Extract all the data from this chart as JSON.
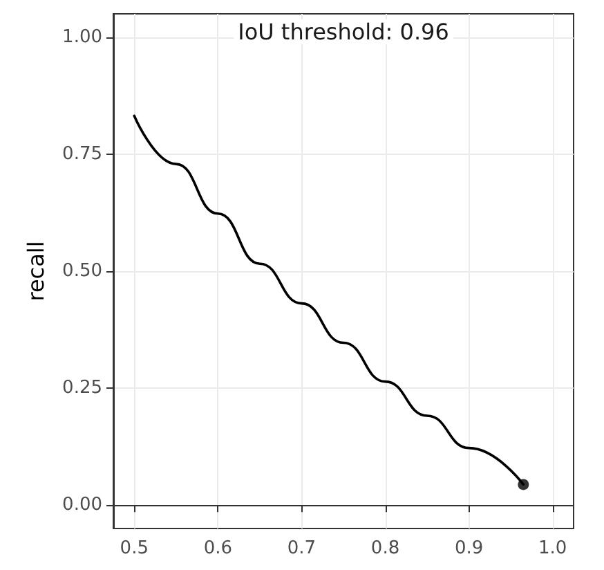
{
  "chart_data": {
    "type": "line",
    "ylabel": "recall",
    "annotations": [
      "IoU threshold: 0.96"
    ],
    "x": [
      0.5,
      0.55,
      0.6,
      0.65,
      0.7,
      0.75,
      0.8,
      0.85,
      0.9,
      0.965
    ],
    "series": [
      {
        "color": "#000000",
        "marker": "none",
        "values": [
          0.832,
          0.729,
          0.623,
          0.516,
          0.431,
          0.347,
          0.264,
          0.191,
          0.122,
          0.044
        ]
      },
      {
        "type": "scatter",
        "color": "#000000",
        "marker": "circle",
        "x": [
          0.965
        ],
        "values": [
          0.044
        ]
      }
    ],
    "xlim": [
      0.475,
      1.025
    ],
    "xticks": [
      0.5,
      0.6,
      0.7,
      0.8,
      0.9,
      {
        "value": 1,
        "label": "1.0"
      }
    ],
    "ylim": [
      -0.05,
      1.05
    ],
    "yticks": [
      {
        "value": 0,
        "label": "0.00"
      },
      {
        "value": 0.25,
        "label": "0.25"
      },
      {
        "value": 0.5,
        "label": "0.50"
      },
      {
        "value": 0.75,
        "label": "0.75"
      },
      {
        "value": 1,
        "label": "1.00"
      }
    ],
    "grid": true
  }
}
